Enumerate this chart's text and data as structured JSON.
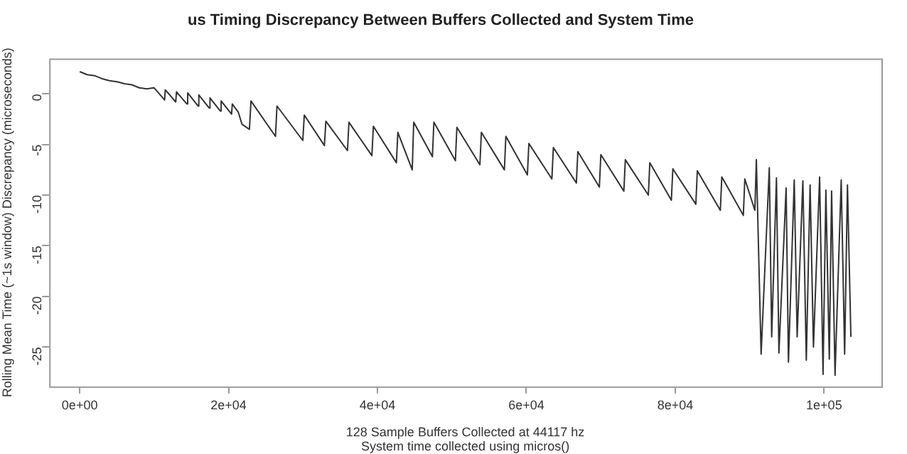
{
  "chart_data": {
    "type": "line",
    "title": "us Timing Discrepancy Between Buffers Collected and System Time",
    "xlabel": "128 Sample Buffers Collected at 44117 hz\nSystem time collected using micros()",
    "ylabel": "Rolling Mean Time (~1s window) Discrepancy (microseconds)",
    "xlim": [
      -4100,
      107700
    ],
    "ylim": [
      -28.9,
      3.5
    ],
    "xticks": [
      {
        "value": 0,
        "label": "0e+00"
      },
      {
        "value": 20000,
        "label": "2e+04"
      },
      {
        "value": 40000,
        "label": "4e+04"
      },
      {
        "value": 60000,
        "label": "6e+04"
      },
      {
        "value": 80000,
        "label": "8e+04"
      },
      {
        "value": 100000,
        "label": "1e+05"
      }
    ],
    "yticks": [
      0,
      -5,
      -10,
      -15,
      -20,
      -25
    ],
    "grid": false,
    "legend": false,
    "marker": "none",
    "line_style": "solid",
    "series": [
      {
        "color": "#333333",
        "x": [
          0,
          1000,
          2000,
          3000,
          4000,
          5000,
          6000,
          7000,
          8000,
          9000,
          10000,
          11400,
          11500,
          12900,
          13000,
          14400,
          14500,
          15900,
          16000,
          17400,
          17500,
          18900,
          19000,
          20400,
          20500,
          21300,
          21800,
          22800,
          23010,
          26300,
          26500,
          29970,
          30170,
          32870,
          33070,
          35970,
          36170,
          39250,
          39450,
          42540,
          42740,
          44670,
          44870,
          47380,
          47580,
          50470,
          50670,
          53760,
          53960,
          57050,
          57250,
          60140,
          60340,
          63430,
          63630,
          66720,
          66920,
          69810,
          70010,
          73100,
          73300,
          76390,
          76590,
          79480,
          79680,
          82770,
          82970,
          86060,
          86260,
          89150,
          89350,
          90700,
          90900,
          91540,
          92640,
          92960,
          93600,
          93930,
          94900,
          95210,
          95990,
          96380,
          97150,
          97610,
          98120,
          98570,
          99400,
          99860,
          100240,
          100700,
          101010,
          101470,
          102300,
          102760,
          103140,
          103600
        ],
        "values": [
          2.2,
          1.9,
          1.8,
          1.5,
          1.3,
          1.2,
          1.0,
          0.9,
          0.6,
          0.5,
          0.6,
          -0.6,
          0.4,
          -0.8,
          0.2,
          -1.0,
          0.1,
          -1.2,
          -0.1,
          -1.4,
          -0.4,
          -1.7,
          -0.7,
          -2.0,
          -1.0,
          -1.8,
          -3.0,
          -3.5,
          -0.7,
          -4.2,
          -1.2,
          -4.6,
          -2.1,
          -5.1,
          -2.7,
          -5.6,
          -2.8,
          -6.1,
          -3.2,
          -6.8,
          -3.8,
          -7.5,
          -2.8,
          -6.2,
          -2.8,
          -6.6,
          -3.3,
          -7.0,
          -3.8,
          -7.5,
          -4.2,
          -8.0,
          -4.9,
          -8.4,
          -5.3,
          -8.8,
          -5.7,
          -9.2,
          -6.0,
          -9.6,
          -6.5,
          -10.0,
          -6.8,
          -10.5,
          -7.4,
          -10.9,
          -7.6,
          -11.5,
          -8.2,
          -12.0,
          -8.4,
          -11.5,
          -6.5,
          -25.7,
          -7.3,
          -24.0,
          -8.3,
          -25.6,
          -9.3,
          -26.5,
          -8.5,
          -24.0,
          -8.6,
          -26.3,
          -9.0,
          -25.0,
          -8.2,
          -27.7,
          -9.5,
          -26.2,
          -9.6,
          -27.8,
          -8.5,
          -25.7,
          -9.0,
          -24.0
        ]
      }
    ]
  }
}
